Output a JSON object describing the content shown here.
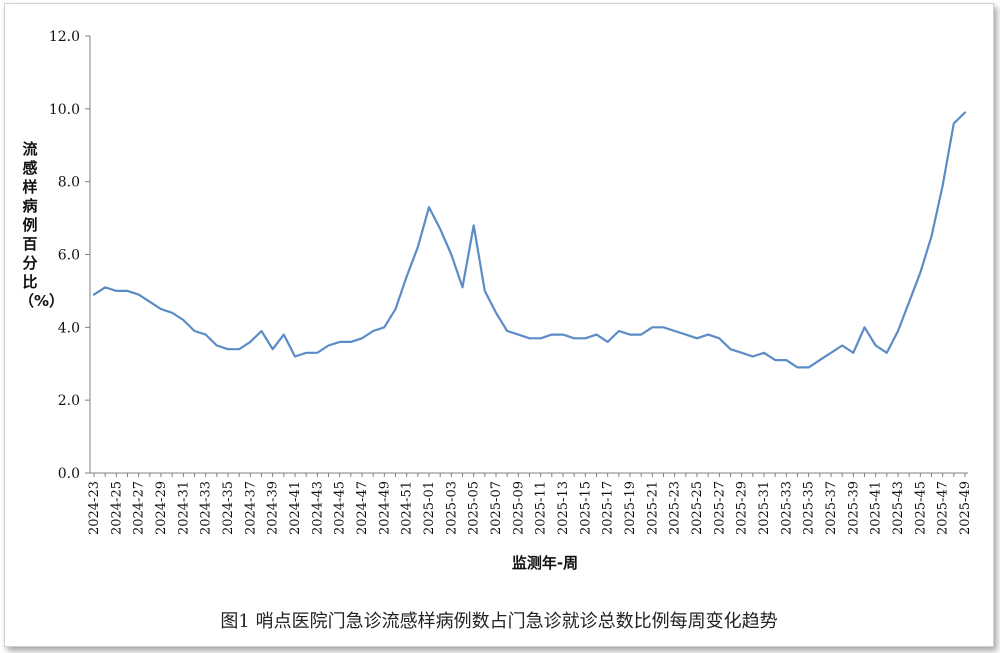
{
  "caption": "图1    哨点医院门急诊流感样病例数占门急诊就诊总数比例每周变化趋势",
  "colors": {
    "line": "#5b8cc6",
    "axis": "#7f7f7f",
    "text": "#111111"
  },
  "chart_data": {
    "type": "line",
    "title": "",
    "xlabel": "监测年-周",
    "ylabel": "流感样病例百分比（%）",
    "ylim": [
      0,
      12
    ],
    "yticks": [
      "0.0",
      "2.0",
      "4.0",
      "6.0",
      "8.0",
      "10.0",
      "12.0"
    ],
    "grid": false,
    "tick_labels": [
      "2024-23",
      "2024-25",
      "2024-27",
      "2024-29",
      "2024-31",
      "2024-33",
      "2024-35",
      "2024-37",
      "2024-39",
      "2024-41",
      "2024-43",
      "2024-45",
      "2024-47",
      "2024-49",
      "2024-51",
      "2025-01",
      "2025-03",
      "2025-05",
      "2025-07",
      "2025-09",
      "2025-11",
      "2025-13",
      "2025-15",
      "2025-17",
      "2025-19",
      "2025-21",
      "2025-23",
      "2025-25",
      "2025-27",
      "2025-29",
      "2025-31",
      "2025-33",
      "2025-35",
      "2025-37",
      "2025-39",
      "2025-41",
      "2025-43",
      "2025-45",
      "2025-47",
      "2025-49"
    ],
    "series": [
      {
        "values": [
          4.9,
          5.1,
          5.0,
          5.0,
          4.9,
          4.7,
          4.5,
          4.4,
          4.2,
          3.9,
          3.8,
          3.5,
          3.4,
          3.4,
          3.6,
          3.9,
          3.4,
          3.8,
          3.2,
          3.3,
          3.3,
          3.5,
          3.6,
          3.6,
          3.7,
          3.9,
          4.0,
          4.5,
          5.4,
          6.2,
          7.3,
          6.7,
          6.0,
          5.1,
          6.8,
          5.0,
          4.4,
          3.9,
          3.8,
          3.7,
          3.7,
          3.8,
          3.8,
          3.7,
          3.7,
          3.8,
          3.6,
          3.9,
          3.8,
          3.8,
          4.0,
          4.0,
          3.9,
          3.8,
          3.7,
          3.8,
          3.7,
          3.4,
          3.3,
          3.2,
          3.3,
          3.1,
          3.1,
          2.9,
          2.9,
          3.1,
          3.3,
          3.5,
          3.3,
          4.0,
          3.5,
          3.3,
          3.9,
          4.7,
          5.5,
          6.5,
          7.9,
          9.6,
          9.9
        ]
      }
    ]
  }
}
